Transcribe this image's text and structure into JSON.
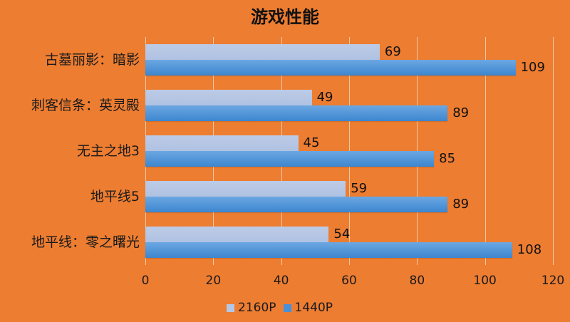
{
  "chart_data": {
    "type": "bar",
    "orientation": "horizontal",
    "title": "游戏性能",
    "categories": [
      "古墓丽影：暗影",
      "刺客信条：英灵殿",
      "无主之地3",
      "地平线5",
      "地平线：零之曙光"
    ],
    "series": [
      {
        "name": "2160P",
        "color": "#B4C7E7",
        "values": [
          69,
          49,
          45,
          59,
          54
        ]
      },
      {
        "name": "1440P",
        "color": "#4A90D9",
        "values": [
          109,
          89,
          85,
          89,
          108
        ]
      }
    ],
    "xlabel": "",
    "ylabel": "",
    "xlim": [
      0,
      120
    ],
    "xticks": [
      "0",
      "20",
      "40",
      "60",
      "80",
      "100",
      "120"
    ],
    "grid": true,
    "legend_position": "bottom",
    "data_labels": true
  },
  "colors": {
    "background": "#ED7D31",
    "gridline": "#F4C7A3"
  }
}
